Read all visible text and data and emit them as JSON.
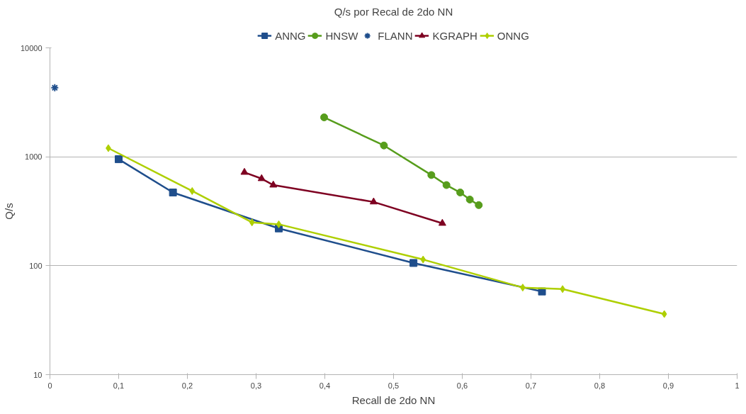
{
  "chart_data": {
    "type": "line",
    "title": "Q/s por Recal de 2do NN",
    "xlabel": "Recall de 2do NN",
    "ylabel": "Q/s",
    "log": "y",
    "grid": "y",
    "legend": "top",
    "xlim": [
      0,
      1
    ],
    "xticks": [
      0,
      {
        "value": 0.1,
        "label": "0,1"
      },
      {
        "value": 0.2,
        "label": "0,2"
      },
      {
        "value": 0.3,
        "label": "0,3"
      },
      {
        "value": 0.4,
        "label": "0,4"
      },
      {
        "value": 0.5,
        "label": "0,5"
      },
      {
        "value": 0.6,
        "label": "0,6"
      },
      {
        "value": 0.7,
        "label": "0,7"
      },
      {
        "value": 0.8,
        "label": "0,8"
      },
      {
        "value": 0.9,
        "label": "0,9"
      },
      1
    ],
    "ylim": [
      10,
      10000
    ],
    "yticks": [
      10,
      100,
      1000,
      10000
    ],
    "series": [
      {
        "name": "ANNG",
        "color": "#1f4e8c",
        "marker": "square",
        "x": [
          0.1,
          0.179,
          0.333,
          0.529,
          0.716
        ],
        "values": [
          950,
          470,
          220,
          106,
          58
        ]
      },
      {
        "name": "HNSW",
        "color": "#579d1c",
        "marker": "circle",
        "x": [
          0.399,
          0.486,
          0.555,
          0.577,
          0.597,
          0.611,
          0.624
        ],
        "values": [
          2300,
          1270,
          680,
          550,
          470,
          405,
          360
        ]
      },
      {
        "name": "FLANN",
        "color": "#1f4e8c",
        "marker": "cross",
        "x": [
          0.007
        ],
        "values": [
          4300
        ]
      },
      {
        "name": "KGRAPH",
        "color": "#7e0021",
        "marker": "triangle",
        "x": [
          0.283,
          0.308,
          0.325,
          0.471,
          0.571
        ],
        "values": [
          720,
          630,
          550,
          385,
          245
        ]
      },
      {
        "name": "ONNG",
        "color": "#aecf00",
        "marker": "diamond",
        "x": [
          0.085,
          0.207,
          0.294,
          0.333,
          0.543,
          0.688,
          0.746,
          0.894
        ],
        "values": [
          1200,
          485,
          250,
          240,
          114,
          63,
          61,
          36
        ]
      }
    ]
  }
}
